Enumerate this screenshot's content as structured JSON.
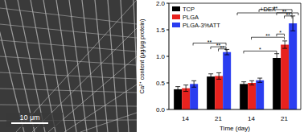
{
  "chart_data": {
    "type": "bar",
    "ylabel": "Ca²⁺ content (μg/μg protein)",
    "xlabel": "Time (day)",
    "categories": [
      "14",
      "21",
      "14",
      "21"
    ],
    "series": [
      {
        "name": "TCP",
        "color": "#000000",
        "values": [
          0.38,
          0.62,
          0.48,
          0.97
        ],
        "errors": [
          0.05,
          0.05,
          0.04,
          0.08
        ]
      },
      {
        "name": "PLGA",
        "color": "#e8221e",
        "values": [
          0.4,
          0.63,
          0.5,
          1.22
        ],
        "errors": [
          0.06,
          0.06,
          0.04,
          0.07
        ]
      },
      {
        "name": "PLGA-3%ATT",
        "color": "#2a3df0",
        "values": [
          0.48,
          1.08,
          0.55,
          1.62
        ],
        "errors": [
          0.06,
          0.05,
          0.04,
          0.14
        ]
      }
    ],
    "ylim": [
      0,
      2.0
    ],
    "yticks": [
      {
        "value": 0,
        "label": "0.0"
      },
      0.5,
      {
        "value": 1,
        "label": "1.0"
      },
      1.5,
      {
        "value": 2,
        "label": "2.0"
      }
    ],
    "legend": "upper left",
    "group_label": {
      "text": "+DEX",
      "categories": [
        2,
        3
      ]
    },
    "significance": [
      {
        "label": "**",
        "from": [
          0,
          2
        ],
        "to": [
          1,
          2
        ],
        "y": 1.25
      },
      {
        "label": "**",
        "from": [
          1,
          0
        ],
        "to": [
          1,
          2
        ],
        "y": 1.18
      },
      {
        "label": "**",
        "from": [
          1,
          1
        ],
        "to": [
          1,
          2
        ],
        "y": 1.14
      },
      {
        "label": "*",
        "from": [
          2,
          0
        ],
        "to": [
          3,
          0
        ],
        "y": 1.1
      },
      {
        "label": "**",
        "from": [
          2,
          1
        ],
        "to": [
          3,
          1
        ],
        "y": 1.36
      },
      {
        "label": "**",
        "from": [
          2,
          2
        ],
        "to": [
          3,
          2
        ],
        "y": 1.88
      },
      {
        "label": "*",
        "from": [
          3,
          0
        ],
        "to": [
          3,
          1
        ],
        "y": 1.42
      },
      {
        "label": "**",
        "from": [
          3,
          0
        ],
        "to": [
          3,
          2
        ],
        "y": 1.82
      },
      {
        "label": "**",
        "from": [
          3,
          1
        ],
        "to": [
          3,
          2
        ],
        "y": 1.76
      }
    ]
  },
  "image": {
    "scale_bar": "10 μm"
  }
}
